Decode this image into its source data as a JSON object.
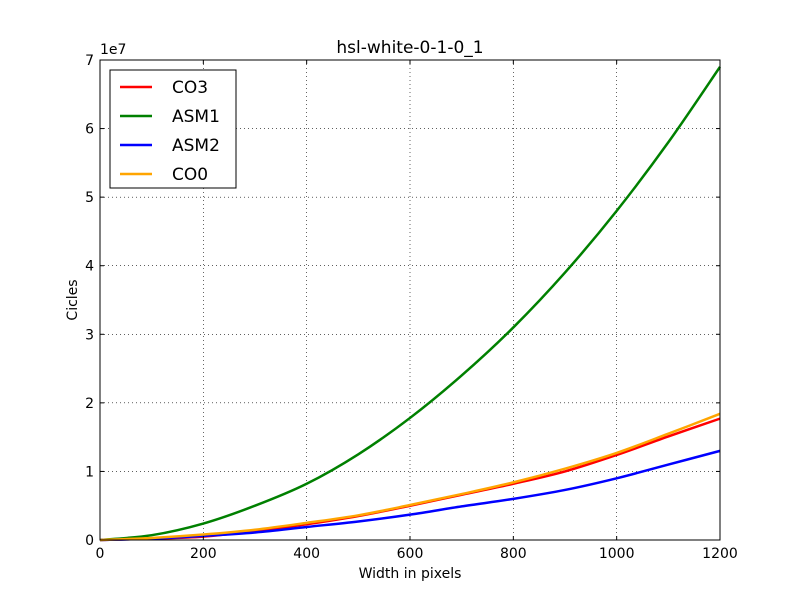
{
  "chart_data": {
    "type": "line",
    "title": "hsl-white-0-1-0_1",
    "xlabel": "Width in pixels",
    "ylabel": "Cicles",
    "y_scale_label": "1e7",
    "xlim": [
      0,
      1200
    ],
    "ylim": [
      0,
      70000000
    ],
    "x_ticks": [
      0,
      200,
      400,
      600,
      800,
      1000,
      1200
    ],
    "y_ticks": [
      0,
      10000000,
      20000000,
      30000000,
      40000000,
      50000000,
      60000000,
      70000000
    ],
    "x_tick_labels": [
      "0",
      "200",
      "400",
      "600",
      "800",
      "1000",
      "1200"
    ],
    "y_tick_labels": [
      "0",
      "1",
      "2",
      "3",
      "4",
      "5",
      "6",
      "7"
    ],
    "grid": true,
    "legend_position": "top-left",
    "x": [
      0,
      100,
      200,
      300,
      400,
      500,
      600,
      700,
      800,
      900,
      1000,
      1100,
      1200
    ],
    "series": [
      {
        "name": "CO3",
        "color": "#ff0000",
        "values": [
          0,
          200000,
          500000,
          1300000,
          2300000,
          3500000,
          5000000,
          6600000,
          8200000,
          10000000,
          12400000,
          15100000,
          17700000
        ]
      },
      {
        "name": "ASM1",
        "color": "#008000",
        "values": [
          0,
          700000,
          2400000,
          5000000,
          8200000,
          12500000,
          17800000,
          24000000,
          31000000,
          39000000,
          48000000,
          58000000,
          69000000
        ]
      },
      {
        "name": "ASM2",
        "color": "#0000ff",
        "values": [
          0,
          200000,
          600000,
          1100000,
          1900000,
          2700000,
          3700000,
          4900000,
          6000000,
          7300000,
          9000000,
          11000000,
          13000000
        ]
      },
      {
        "name": "CO0",
        "color": "#ffa500",
        "values": [
          0,
          300000,
          800000,
          1500000,
          2500000,
          3600000,
          5100000,
          6700000,
          8400000,
          10400000,
          12700000,
          15500000,
          18400000
        ]
      }
    ]
  }
}
